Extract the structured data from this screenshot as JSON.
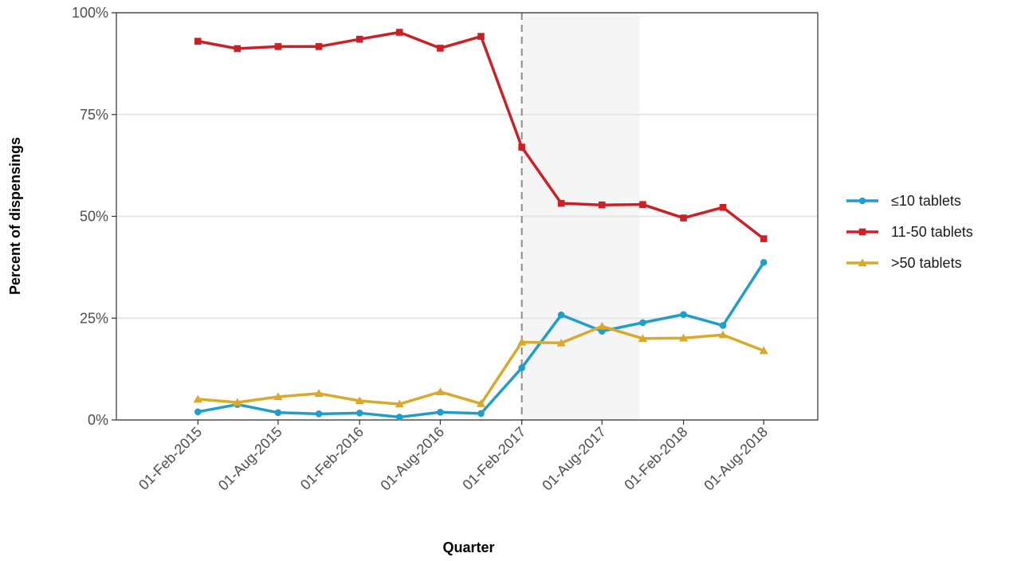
{
  "chart_data": {
    "type": "line",
    "title": "",
    "xlabel": "Quarter",
    "ylabel": "Percent of dispensings",
    "x": [
      "2015-02-01",
      "2015-05-01",
      "2015-08-01",
      "2015-11-01",
      "2016-02-01",
      "2016-05-01",
      "2016-08-01",
      "2016-11-01",
      "2017-02-01",
      "2017-05-01",
      "2017-08-01",
      "2017-11-01",
      "2018-02-01",
      "2018-05-01",
      "2018-08-01"
    ],
    "xlim": [
      "2014-08-01",
      "2018-12-01"
    ],
    "x_ticks": [
      "2015-02-01",
      "2015-08-01",
      "2016-02-01",
      "2016-08-01",
      "2017-02-01",
      "2017-08-01",
      "2018-02-01",
      "2018-08-01"
    ],
    "x_tick_labels": [
      "01-Feb-2015",
      "01-Aug-2015",
      "01-Feb-2016",
      "01-Aug-2016",
      "01-Feb-2017",
      "01-Aug-2017",
      "01-Feb-2018",
      "01-Aug-2018"
    ],
    "ylim": [
      0,
      100
    ],
    "y_ticks": [
      0,
      25,
      50,
      75,
      100
    ],
    "y_tick_labels": [
      "0%",
      "25%",
      "50%",
      "75%",
      "100%"
    ],
    "grid": "horizontal",
    "legend_position": "right",
    "vertical_line": "2017-02-01",
    "shaded_region": [
      "2017-02-01",
      "2017-10-25"
    ],
    "series": [
      {
        "name": "≤10 tablets",
        "color": "#1f9ec9",
        "marker": "circle",
        "values": [
          2.0,
          3.8,
          1.8,
          1.5,
          1.7,
          0.7,
          1.9,
          1.6,
          12.8,
          25.8,
          21.8,
          23.9,
          25.9,
          23.2,
          38.7
        ]
      },
      {
        "name": "11-50 tablets",
        "color": "#cc2027",
        "marker": "square",
        "values": [
          93.0,
          91.2,
          91.7,
          91.7,
          93.5,
          95.2,
          91.3,
          94.2,
          67.0,
          53.2,
          52.8,
          52.9,
          49.6,
          52.2,
          44.5
        ]
      },
      {
        "name": ">50 tablets",
        "color": "#d8a92a",
        "marker": "triangle",
        "values": [
          5.1,
          4.3,
          5.7,
          6.5,
          4.7,
          3.9,
          6.9,
          4.0,
          19.1,
          18.9,
          23.0,
          20.0,
          20.1,
          20.9,
          17.0
        ]
      }
    ]
  }
}
